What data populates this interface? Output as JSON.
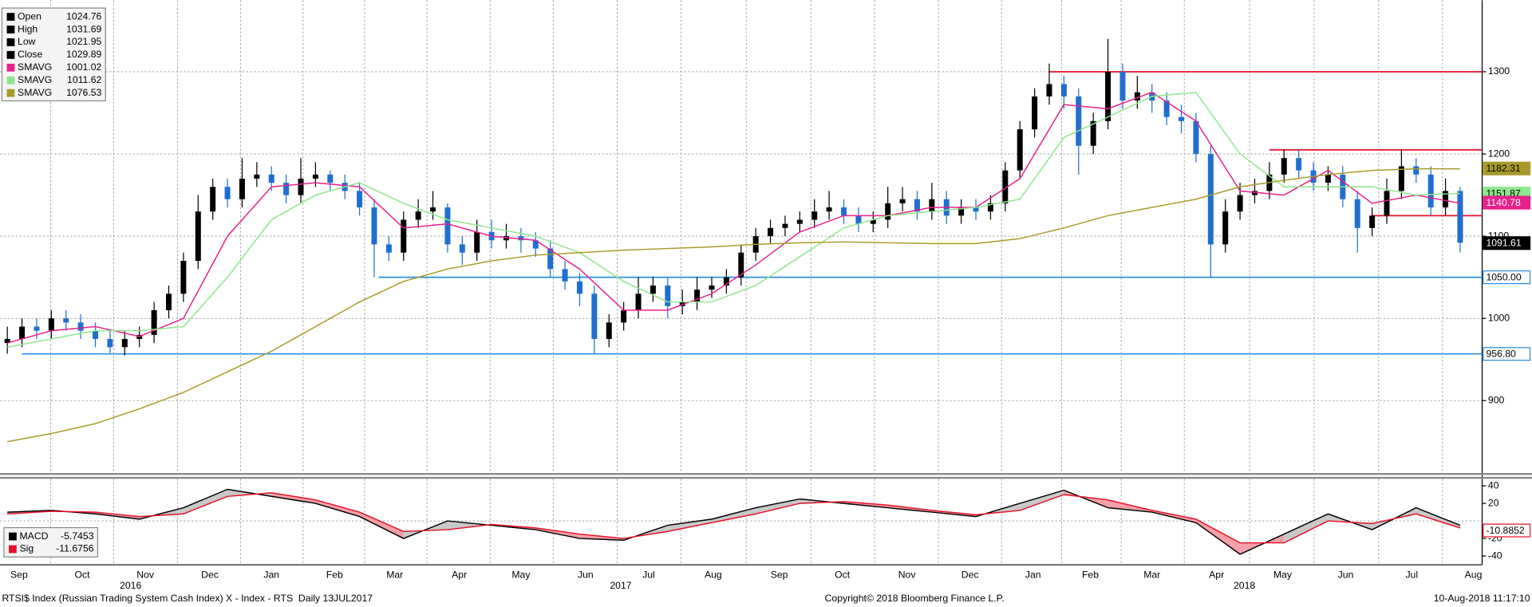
{
  "chart_data": [
    {
      "type": "candlestick",
      "xlim": [
        -0.5,
        100.5
      ],
      "ylim": [
        812,
        1387
      ],
      "yticks": [
        900,
        1000,
        1100,
        1200,
        1300
      ],
      "grid": true,
      "up_color": "#000000",
      "down_color": "#1f6fd0",
      "legend": [
        {
          "name": "Open",
          "value": 1024.76
        },
        {
          "name": "High",
          "value": 1031.69
        },
        {
          "name": "Low",
          "value": 1021.95
        },
        {
          "name": "Close",
          "value": 1029.89
        }
      ],
      "candles": {
        "open": [
          970,
          975,
          990,
          985,
          1000,
          995,
          985,
          975,
          965,
          975,
          980,
          1010,
          1030,
          1070,
          1130,
          1160,
          1145,
          1170,
          1175,
          1165,
          1150,
          1170,
          1175,
          1165,
          1155,
          1135,
          1090,
          1080,
          1120,
          1130,
          1135,
          1090,
          1080,
          1105,
          1095,
          1100,
          1095,
          1085,
          1060,
          1045,
          1030,
          975,
          995,
          1010,
          1030,
          1040,
          1015,
          1020,
          1035,
          1040,
          1050,
          1080,
          1100,
          1110,
          1115,
          1120,
          1130,
          1135,
          1125,
          1115,
          1120,
          1140,
          1145,
          1130,
          1145,
          1125,
          1135,
          1130,
          1140,
          1180,
          1230,
          1270,
          1285,
          1270,
          1210,
          1240,
          1300,
          1265,
          1275,
          1265,
          1245,
          1240,
          1200,
          1090,
          1130,
          1150,
          1155,
          1175,
          1195,
          1180,
          1165,
          1175,
          1145,
          1110,
          1125,
          1155,
          1185,
          1175,
          1135,
          1155
        ],
        "high": [
          990,
          1000,
          1000,
          1010,
          1010,
          1005,
          995,
          985,
          985,
          990,
          1020,
          1040,
          1080,
          1150,
          1170,
          1170,
          1195,
          1190,
          1185,
          1175,
          1195,
          1190,
          1180,
          1175,
          1165,
          1145,
          1100,
          1130,
          1145,
          1155,
          1140,
          1100,
          1120,
          1120,
          1115,
          1110,
          1105,
          1095,
          1070,
          1055,
          1040,
          1005,
          1020,
          1050,
          1050,
          1050,
          1035,
          1050,
          1050,
          1060,
          1090,
          1110,
          1120,
          1125,
          1130,
          1145,
          1155,
          1145,
          1135,
          1130,
          1160,
          1160,
          1155,
          1165,
          1155,
          1145,
          1145,
          1150,
          1190,
          1240,
          1280,
          1310,
          1295,
          1280,
          1250,
          1340,
          1310,
          1295,
          1285,
          1275,
          1260,
          1250,
          1210,
          1145,
          1165,
          1170,
          1190,
          1205,
          1205,
          1190,
          1185,
          1185,
          1155,
          1135,
          1170,
          1205,
          1195,
          1185,
          1170,
          1160
        ],
        "low": [
          957,
          965,
          975,
          975,
          985,
          975,
          965,
          958,
          955,
          965,
          970,
          1000,
          1020,
          1060,
          1120,
          1135,
          1135,
          1160,
          1155,
          1140,
          1140,
          1160,
          1155,
          1145,
          1125,
          1050,
          1070,
          1070,
          1110,
          1120,
          1080,
          1065,
          1070,
          1085,
          1085,
          1080,
          1075,
          1050,
          1035,
          1015,
          957,
          965,
          985,
          1000,
          1020,
          1000,
          1005,
          1010,
          1025,
          1030,
          1040,
          1070,
          1090,
          1100,
          1105,
          1110,
          1120,
          1115,
          1105,
          1105,
          1110,
          1130,
          1120,
          1120,
          1115,
          1115,
          1120,
          1120,
          1130,
          1170,
          1220,
          1260,
          1255,
          1175,
          1200,
          1230,
          1255,
          1255,
          1250,
          1235,
          1225,
          1190,
          1050,
          1080,
          1120,
          1140,
          1145,
          1165,
          1170,
          1155,
          1155,
          1135,
          1080,
          1100,
          1115,
          1145,
          1165,
          1125,
          1125,
          1080
        ],
        "close": [
          975,
          990,
          985,
          1000,
          995,
          985,
          975,
          965,
          975,
          980,
          1010,
          1030,
          1070,
          1130,
          1160,
          1145,
          1170,
          1175,
          1165,
          1150,
          1170,
          1175,
          1165,
          1155,
          1135,
          1090,
          1080,
          1120,
          1130,
          1135,
          1090,
          1080,
          1105,
          1095,
          1100,
          1095,
          1085,
          1060,
          1045,
          1030,
          975,
          995,
          1010,
          1030,
          1040,
          1015,
          1020,
          1035,
          1040,
          1050,
          1080,
          1100,
          1110,
          1115,
          1120,
          1130,
          1135,
          1125,
          1115,
          1120,
          1140,
          1145,
          1130,
          1145,
          1125,
          1135,
          1130,
          1140,
          1180,
          1230,
          1270,
          1285,
          1270,
          1210,
          1240,
          1300,
          1265,
          1275,
          1265,
          1245,
          1240,
          1200,
          1090,
          1130,
          1150,
          1155,
          1175,
          1195,
          1180,
          1165,
          1175,
          1145,
          1110,
          1125,
          1155,
          1185,
          1175,
          1135,
          1155,
          1092
        ]
      },
      "series": [
        {
          "name": "SMAVG",
          "legend_value": 1001.02,
          "color": "#e6208c",
          "tag": 1140.78,
          "x": [
            0,
            3,
            6,
            9,
            12,
            15,
            18,
            21,
            24,
            27,
            30,
            33,
            36,
            39,
            42,
            45,
            48,
            51,
            54,
            57,
            60,
            63,
            66,
            69,
            72,
            75,
            78,
            81,
            84,
            87,
            90,
            93,
            96,
            99
          ],
          "values": [
            970,
            985,
            990,
            978,
            1000,
            1100,
            1160,
            1165,
            1160,
            1110,
            1115,
            1100,
            1095,
            1060,
            1010,
            1010,
            1030,
            1065,
            1105,
            1125,
            1125,
            1135,
            1135,
            1170,
            1260,
            1255,
            1275,
            1240,
            1155,
            1150,
            1180,
            1140,
            1150,
            1140
          ]
        },
        {
          "name": "SMAVG",
          "legend_value": 1011.62,
          "color": "#8ee68e",
          "tag": 1151.87,
          "x": [
            0,
            3,
            6,
            9,
            12,
            15,
            18,
            21,
            24,
            27,
            30,
            33,
            36,
            39,
            42,
            45,
            48,
            51,
            54,
            57,
            60,
            63,
            66,
            69,
            72,
            75,
            78,
            81,
            84,
            87,
            90,
            93,
            96,
            99
          ],
          "values": [
            965,
            975,
            985,
            985,
            990,
            1050,
            1120,
            1150,
            1165,
            1140,
            1120,
            1110,
            1100,
            1080,
            1045,
            1020,
            1020,
            1040,
            1075,
            1110,
            1125,
            1130,
            1135,
            1145,
            1220,
            1245,
            1270,
            1275,
            1200,
            1160,
            1160,
            1160,
            1150,
            1152
          ]
        },
        {
          "name": "SMAVG",
          "legend_value": 1076.53,
          "color": "#a89a2a",
          "tag": 1182.31,
          "x": [
            0,
            3,
            6,
            9,
            12,
            15,
            18,
            21,
            24,
            27,
            30,
            33,
            36,
            39,
            42,
            45,
            48,
            51,
            54,
            57,
            60,
            63,
            66,
            69,
            72,
            75,
            78,
            81,
            84,
            87,
            90,
            93,
            96,
            99
          ],
          "values": [
            850,
            860,
            872,
            890,
            910,
            935,
            960,
            990,
            1020,
            1045,
            1060,
            1070,
            1077,
            1080,
            1083,
            1085,
            1087,
            1090,
            1092,
            1093,
            1092,
            1091,
            1091,
            1097,
            1110,
            1125,
            1135,
            1145,
            1160,
            1168,
            1175,
            1180,
            1182,
            1182
          ]
        }
      ],
      "price_tag": 1091.61,
      "levels": [
        {
          "value": 1300,
          "color": "#e8102a",
          "start": 71
        },
        {
          "value": 1205,
          "color": "#e8102a",
          "start": 86
        },
        {
          "value": 1125,
          "color": "#e8102a",
          "start": 93
        },
        {
          "value": 1050,
          "color": "#2a8fe0",
          "start": 25.3,
          "tag": {
            "value": 1050,
            "label": "1050.00"
          }
        },
        {
          "value": 956.8,
          "color": "#2a8fe0",
          "start": 1,
          "tag": {
            "value": 956.8,
            "label": "956.80"
          }
        }
      ]
    },
    {
      "type": "macd",
      "xlim": [
        -0.5,
        100.5
      ],
      "ylim": [
        -50,
        48
      ],
      "yticks": [
        40,
        20,
        -20,
        -40
      ],
      "grid": true,
      "fill_up": "#c8c8c8",
      "fill_down": "#f4a0a8",
      "series": [
        {
          "name": "MACD",
          "legend_value": -5.7453,
          "color": "#000000",
          "x": [
            0,
            3,
            6,
            9,
            12,
            15,
            18,
            21,
            24,
            27,
            30,
            33,
            36,
            39,
            42,
            45,
            48,
            51,
            54,
            57,
            60,
            63,
            66,
            69,
            72,
            75,
            78,
            81,
            84,
            87,
            90,
            93,
            96,
            99
          ],
          "values": [
            10,
            12,
            8,
            2,
            15,
            36,
            28,
            20,
            5,
            -20,
            0,
            -5,
            -10,
            -20,
            -22,
            -5,
            2,
            15,
            25,
            20,
            15,
            10,
            5,
            20,
            35,
            15,
            10,
            -2,
            -38,
            -15,
            8,
            -10,
            15,
            -5
          ]
        },
        {
          "name": "Sig",
          "legend_value": -11.6756,
          "color": "#e8102a",
          "tag": -10.8852,
          "x": [
            0,
            3,
            6,
            9,
            12,
            15,
            18,
            21,
            24,
            27,
            30,
            33,
            36,
            39,
            42,
            45,
            48,
            51,
            54,
            57,
            60,
            63,
            66,
            69,
            72,
            75,
            78,
            81,
            84,
            87,
            90,
            93,
            96,
            99
          ],
          "values": [
            8,
            11,
            10,
            5,
            8,
            28,
            32,
            24,
            10,
            -12,
            -10,
            -4,
            -8,
            -15,
            -20,
            -12,
            -2,
            8,
            20,
            22,
            18,
            12,
            7,
            12,
            30,
            24,
            12,
            2,
            -25,
            -25,
            0,
            -3,
            8,
            -8
          ]
        }
      ],
      "xticks": [
        {
          "value": 0.8,
          "label": "Sep"
        },
        {
          "value": 5.1,
          "label": "Oct"
        },
        {
          "value": 9.4,
          "label": "Nov"
        },
        {
          "value": 13.8,
          "label": "Dec"
        },
        {
          "value": 18.0,
          "label": "Jan"
        },
        {
          "value": 22.3,
          "label": "Feb"
        },
        {
          "value": 26.4,
          "label": "Mar"
        },
        {
          "value": 30.8,
          "label": "Apr"
        },
        {
          "value": 35.0,
          "label": "May"
        },
        {
          "value": 39.4,
          "label": "Jun"
        },
        {
          "value": 43.7,
          "label": "Jul"
        },
        {
          "value": 48.1,
          "label": "Aug"
        },
        {
          "value": 52.6,
          "label": "Sep"
        },
        {
          "value": 56.9,
          "label": "Oct"
        },
        {
          "value": 61.3,
          "label": "Nov"
        },
        {
          "value": 65.6,
          "label": "Dec"
        },
        {
          "value": 69.9,
          "label": "Jan"
        },
        {
          "value": 73.8,
          "label": "Feb"
        },
        {
          "value": 78.0,
          "label": "Mar"
        },
        {
          "value": 82.4,
          "label": "Apr"
        },
        {
          "value": 86.9,
          "label": "May"
        },
        {
          "value": 91.2,
          "label": "Jun"
        },
        {
          "value": 95.7,
          "label": "Jul"
        },
        {
          "value": 99.9,
          "label": "Aug"
        }
      ],
      "year_ticks": [
        {
          "value": 8.4,
          "label": "2016"
        },
        {
          "value": 41.8,
          "label": "2017"
        },
        {
          "value": 84.3,
          "label": "2018"
        }
      ]
    }
  ],
  "footer": {
    "left": "RTSI$ Index (Russian Trading System Cash Index) X - Index - RTS  Daily 13JUL2017",
    "center": "Copyright© 2018 Bloomberg Finance L.P.",
    "right": "10-Aug-2018 11:17:10"
  }
}
